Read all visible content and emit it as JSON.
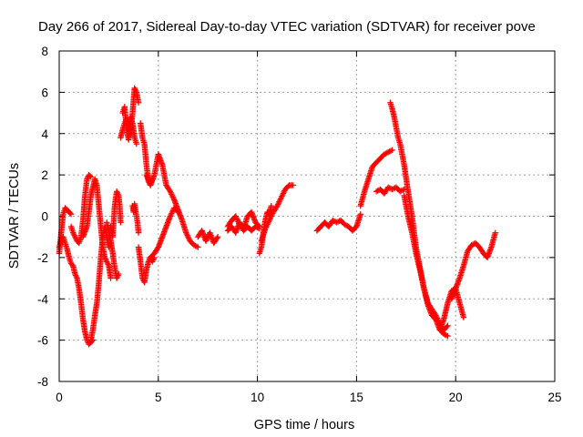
{
  "chart_data": {
    "type": "scatter",
    "title": "Day 266 of 2017, Sidereal Day-to-day VTEC variation (SDTVAR) for receiver pove",
    "xlabel": "GPS time / hours",
    "ylabel": "SDTVAR / TECUs",
    "xlim": [
      0,
      25
    ],
    "ylim": [
      -8,
      8
    ],
    "xticks": [
      0,
      5,
      10,
      15,
      20,
      25
    ],
    "yticks": [
      -8,
      -6,
      -4,
      -2,
      0,
      2,
      4,
      6,
      8
    ],
    "grid": true,
    "marker": "plus",
    "color": "#ff0000",
    "segments": [
      {
        "x": [
          0.0,
          0.1,
          0.2,
          0.3,
          0.4,
          0.5,
          0.6
        ],
        "y": [
          -1.8,
          -0.8,
          0.1,
          0.4,
          0.3,
          0.2,
          0.1
        ]
      },
      {
        "x": [
          0.0,
          0.1,
          0.2,
          0.3,
          0.4,
          0.5,
          0.6,
          0.7,
          0.8,
          0.9,
          1.0,
          1.1,
          1.2,
          1.3,
          1.4,
          1.5,
          1.6,
          1.7
        ],
        "y": [
          -1.5,
          -1.2,
          -1.0,
          -1.3,
          -1.6,
          -2.0,
          -2.3,
          -2.4,
          -2.8,
          -3.0,
          -3.5,
          -4.2,
          -5.0,
          -5.6,
          -6.0,
          -6.2,
          -6.1,
          -6.0
        ]
      },
      {
        "x": [
          0.6,
          0.7,
          0.8,
          0.9,
          1.0,
          1.1,
          1.2,
          1.3,
          1.4,
          1.5,
          1.6
        ],
        "y": [
          -0.5,
          -0.8,
          -1.0,
          -1.2,
          -1.3,
          -1.0,
          -0.2,
          1.0,
          1.8,
          2.0,
          1.9
        ]
      },
      {
        "x": [
          1.2,
          1.4,
          1.6,
          1.8,
          1.9,
          2.0,
          2.1,
          2.2,
          2.3,
          2.4,
          2.5,
          2.6
        ],
        "y": [
          -1.0,
          -0.5,
          1.0,
          1.8,
          1.5,
          0.5,
          -0.5,
          -1.5,
          -2.0,
          -2.2,
          -2.4,
          -3.0
        ]
      },
      {
        "x": [
          1.6,
          1.7,
          1.8,
          1.9,
          2.0,
          2.1,
          2.2,
          2.3,
          2.4,
          2.5
        ],
        "y": [
          -6.0,
          -5.5,
          -4.8,
          -4.2,
          -3.2,
          -2.0,
          -1.0,
          -0.5,
          -1.0,
          -1.5
        ]
      },
      {
        "x": [
          2.4,
          2.5,
          2.6,
          2.7,
          2.8,
          2.9,
          3.0
        ],
        "y": [
          -0.3,
          -0.8,
          -1.2,
          -1.8,
          -2.5,
          -3.0,
          -2.8
        ]
      },
      {
        "x": [
          2.6,
          2.7,
          2.8,
          2.9,
          3.0,
          3.05,
          3.1
        ],
        "y": [
          -0.5,
          -1.0,
          0.5,
          1.2,
          1.0,
          0.5,
          -0.3
        ]
      },
      {
        "x": [
          3.1,
          3.2,
          3.3,
          3.4,
          3.5,
          3.6,
          3.7,
          3.8,
          3.9,
          4.0
        ],
        "y": [
          3.8,
          4.2,
          4.5,
          4.7,
          4.2,
          4.0,
          5.0,
          6.2,
          6.0,
          5.5
        ]
      },
      {
        "x": [
          3.2,
          3.3,
          3.4,
          3.5,
          3.6,
          3.7,
          3.8,
          3.9
        ],
        "y": [
          5.0,
          5.3,
          4.2,
          3.7,
          4.8,
          4.5,
          3.8,
          3.5
        ]
      },
      {
        "x": [
          3.7,
          3.75,
          3.8,
          3.85,
          3.9,
          3.95,
          4.0
        ],
        "y": [
          0.5,
          0.2,
          0.6,
          0.3,
          0.0,
          -0.3,
          -0.8
        ]
      },
      {
        "x": [
          4.0,
          4.1,
          4.2,
          4.3,
          4.4,
          4.5,
          4.6,
          4.7,
          4.8
        ],
        "y": [
          -1.5,
          -2.2,
          -3.0,
          -3.2,
          -2.6,
          -2.2,
          -2.0,
          -2.2,
          -2.0
        ]
      },
      {
        "x": [
          4.1,
          4.2,
          4.3,
          4.4,
          4.5,
          4.6,
          4.7
        ],
        "y": [
          4.5,
          3.8,
          3.5,
          2.5,
          1.7,
          1.5,
          1.8
        ]
      },
      {
        "x": [
          4.4,
          4.6,
          4.8,
          5.0,
          5.2,
          5.4,
          5.6,
          5.8,
          6.0,
          6.2,
          6.4,
          6.6,
          6.8,
          7.0
        ],
        "y": [
          2.0,
          1.5,
          2.0,
          3.0,
          2.5,
          1.5,
          1.2,
          0.8,
          0.3,
          -0.2,
          -0.8,
          -1.2,
          -1.4,
          -1.5
        ]
      },
      {
        "x": [
          4.6,
          4.8,
          5.0,
          5.2,
          5.4,
          5.6,
          5.8,
          6.0
        ],
        "y": [
          -2.0,
          -1.8,
          -1.5,
          -1.0,
          -0.5,
          0.0,
          0.4,
          0.2
        ]
      },
      {
        "x": [
          7.0,
          7.2,
          7.4,
          7.6,
          7.8,
          8.0
        ],
        "y": [
          -1.0,
          -0.7,
          -1.2,
          -0.8,
          -1.3,
          -1.0
        ]
      },
      {
        "x": [
          8.5,
          8.7,
          8.9,
          9.1,
          9.3,
          9.5,
          9.7,
          9.9,
          10.1
        ],
        "y": [
          -0.5,
          -0.2,
          0.0,
          -0.4,
          -0.6,
          0.0,
          0.2,
          -0.3,
          -0.5
        ]
      },
      {
        "x": [
          8.5,
          8.7,
          8.9,
          9.1,
          9.3,
          9.5,
          9.7,
          9.9,
          10.1
        ],
        "y": [
          -0.7,
          -0.5,
          -0.8,
          -0.3,
          -0.7,
          -0.5,
          -0.7,
          -0.5,
          -0.6
        ]
      },
      {
        "x": [
          10.1,
          10.2,
          10.3,
          10.4,
          10.5,
          10.6,
          10.7
        ],
        "y": [
          -1.8,
          -1.5,
          -0.8,
          -0.2,
          0.2,
          0.1,
          0.5
        ]
      },
      {
        "x": [
          10.2,
          10.4,
          10.6,
          10.8,
          11.0,
          11.2,
          11.4,
          11.6,
          11.8
        ],
        "y": [
          -1.2,
          -0.6,
          -0.2,
          0.2,
          0.5,
          0.9,
          1.3,
          1.5,
          1.5
        ]
      },
      {
        "x": [
          13.0,
          13.2,
          13.4,
          13.6,
          13.8,
          14.0,
          14.2,
          14.4,
          14.6,
          14.8,
          15.0,
          15.2
        ],
        "y": [
          -0.7,
          -0.5,
          -0.3,
          -0.5,
          -0.2,
          -0.3,
          -0.2,
          -0.4,
          -0.5,
          -0.7,
          -0.5,
          0.1
        ]
      },
      {
        "x": [
          15.2,
          15.4,
          15.6,
          15.8,
          16.0,
          16.2,
          16.4,
          16.6,
          16.8
        ],
        "y": [
          0.5,
          1.2,
          1.8,
          2.4,
          2.6,
          2.8,
          3.0,
          3.1,
          3.2
        ]
      },
      {
        "x": [
          16.0,
          16.2,
          16.4,
          16.6,
          16.8,
          17.0,
          17.2,
          17.4
        ],
        "y": [
          1.2,
          1.3,
          1.1,
          1.4,
          1.3,
          1.4,
          1.2,
          1.3
        ]
      },
      {
        "x": [
          16.7,
          16.8,
          16.9,
          17.0,
          17.1,
          17.2,
          17.3,
          17.4,
          17.6,
          17.8,
          18.0,
          18.2,
          18.4,
          18.6,
          18.8,
          19.0,
          19.2,
          19.4,
          19.6
        ],
        "y": [
          5.5,
          5.2,
          4.8,
          4.3,
          3.8,
          3.5,
          3.0,
          2.5,
          1.2,
          0.0,
          -1.5,
          -2.5,
          -3.5,
          -4.3,
          -4.8,
          -5.0,
          -5.5,
          -5.7,
          -5.8
        ]
      },
      {
        "x": [
          17.4,
          17.6,
          17.8,
          18.0,
          18.2,
          18.4,
          18.6,
          18.8,
          19.0,
          19.2,
          19.4,
          19.6
        ],
        "y": [
          1.0,
          0.0,
          -0.8,
          -1.8,
          -2.6,
          -3.5,
          -4.2,
          -4.5,
          -4.8,
          -5.2,
          -5.5,
          -5.3
        ]
      },
      {
        "x": [
          19.2,
          19.4,
          19.6,
          19.8,
          20.0,
          20.2,
          20.4
        ],
        "y": [
          -5.5,
          -5.0,
          -4.2,
          -3.6,
          -3.5,
          -4.2,
          -4.9
        ]
      },
      {
        "x": [
          19.8,
          20.0,
          20.2,
          20.4,
          20.6,
          20.8,
          21.0,
          21.2,
          21.4,
          21.6,
          21.8,
          22.0
        ],
        "y": [
          -4.0,
          -3.5,
          -3.0,
          -2.4,
          -1.7,
          -1.4,
          -1.3,
          -1.5,
          -1.8,
          -2.0,
          -1.5,
          -0.8
        ]
      }
    ]
  }
}
